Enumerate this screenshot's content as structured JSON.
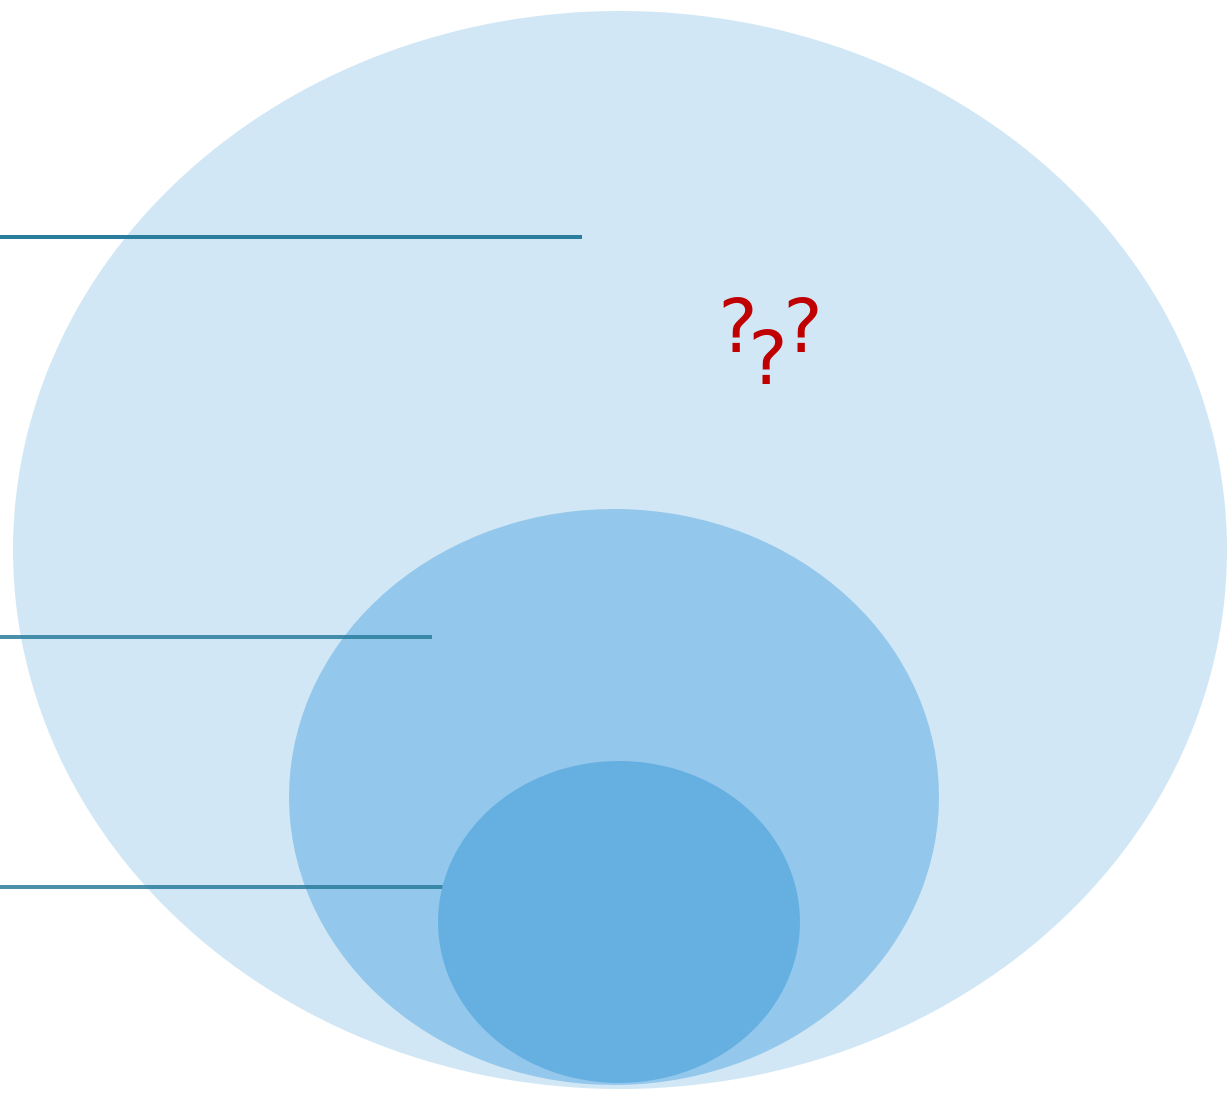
{
  "diagram": {
    "kind": "nested-ellipses",
    "marks": [
      {
        "text": "?"
      },
      {
        "text": "?"
      },
      {
        "text": "?"
      }
    ]
  },
  "colors": {
    "background": "#ffffff",
    "outer_ellipse": "#d1e7f5",
    "middle_ellipse": "#93c7eb",
    "inner_ellipse": "#65b0e1",
    "leader_line": "#2a7d9c",
    "question_marks": "#c00000"
  }
}
